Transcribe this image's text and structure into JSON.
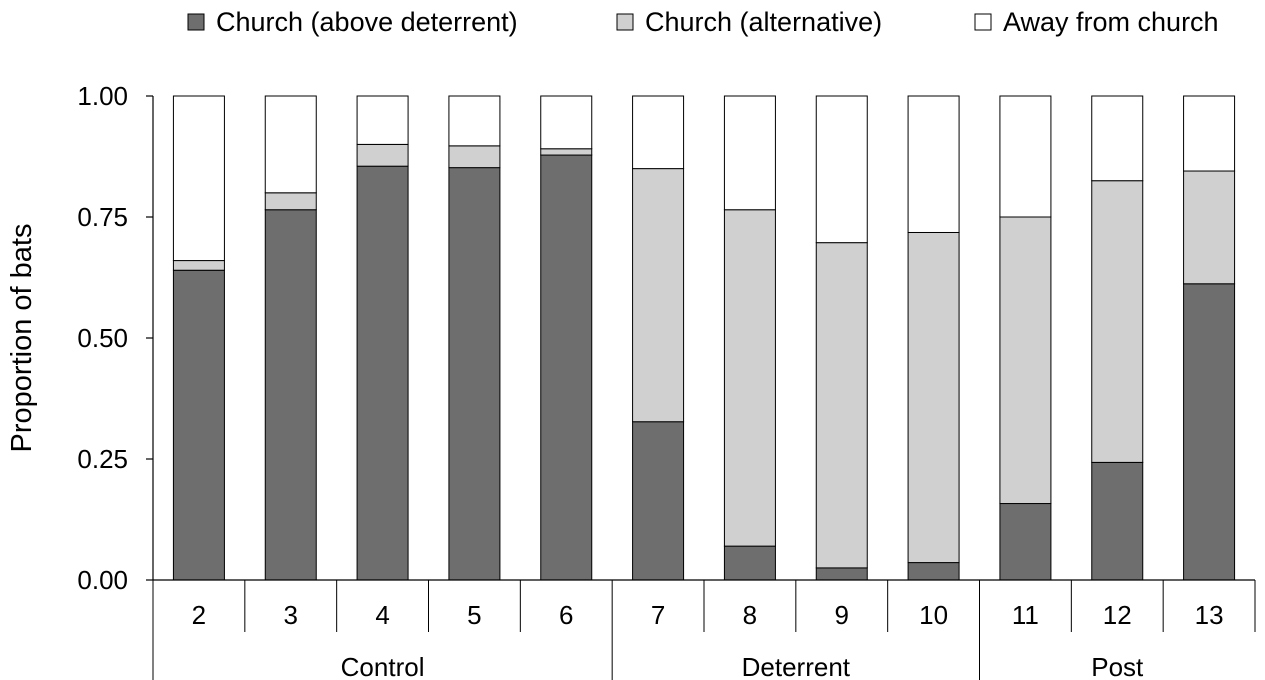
{
  "chart_data": {
    "type": "bar",
    "stacked": true,
    "title": "",
    "xlabel": "",
    "ylabel": "Proportion of bats",
    "ylim": [
      0,
      1
    ],
    "yticks": [
      "0.00",
      "0.25",
      "0.50",
      "0.75",
      "1.00"
    ],
    "yticks_values": [
      0,
      0.25,
      0.5,
      0.75,
      1.0
    ],
    "categories": [
      "2",
      "3",
      "4",
      "5",
      "6",
      "7",
      "8",
      "9",
      "10",
      "11",
      "12",
      "13"
    ],
    "groups": [
      {
        "label": "Control",
        "categories": [
          "2",
          "3",
          "4",
          "5",
          "6"
        ]
      },
      {
        "label": "Deterrent",
        "categories": [
          "7",
          "8",
          "9",
          "10"
        ]
      },
      {
        "label": "Post",
        "categories": [
          "11",
          "12",
          "13"
        ]
      }
    ],
    "series": [
      {
        "name": "Church (above deterrent)",
        "color": "#6e6e6e",
        "values": [
          0.64,
          0.765,
          0.855,
          0.852,
          0.878,
          0.327,
          0.07,
          0.025,
          0.036,
          0.158,
          0.243,
          0.612
        ]
      },
      {
        "name": "Church (alternative)",
        "color": "#d0d0d0",
        "values": [
          0.02,
          0.035,
          0.045,
          0.045,
          0.013,
          0.523,
          0.695,
          0.672,
          0.682,
          0.592,
          0.582,
          0.233
        ]
      },
      {
        "name": "Away from church",
        "color": "#ffffff",
        "values": [
          0.34,
          0.2,
          0.1,
          0.103,
          0.109,
          0.15,
          0.235,
          0.303,
          0.282,
          0.25,
          0.175,
          0.155
        ]
      }
    ],
    "grid": false,
    "legend_position": "top"
  }
}
